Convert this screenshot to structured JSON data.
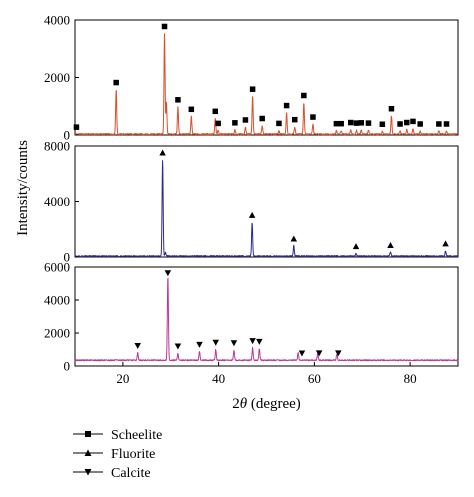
{
  "chart_data": {
    "type": "line",
    "xlabel": "2θ (degree)",
    "ylabel": "Intensity/counts",
    "xlim": [
      10,
      90
    ],
    "x_ticks": [
      20,
      40,
      60,
      80
    ],
    "grid": false,
    "legend_position": "bottom-left",
    "panels": [
      {
        "name": "Scheelite",
        "color": "#d9502b",
        "marker": "square",
        "ylim": [
          0,
          4000
        ],
        "y_ticks": [
          0,
          2000,
          4000
        ],
        "baseline": 30,
        "peaks": [
          {
            "x": 18.6,
            "y": 1550
          },
          {
            "x": 28.7,
            "y": 3500
          },
          {
            "x": 29.1,
            "y": 1100
          },
          {
            "x": 31.5,
            "y": 950
          },
          {
            "x": 34.3,
            "y": 620
          },
          {
            "x": 39.3,
            "y": 550
          },
          {
            "x": 39.9,
            "y": 130
          },
          {
            "x": 43.4,
            "y": 150
          },
          {
            "x": 45.6,
            "y": 250
          },
          {
            "x": 47.1,
            "y": 1320
          },
          {
            "x": 49.1,
            "y": 300
          },
          {
            "x": 52.6,
            "y": 130
          },
          {
            "x": 54.2,
            "y": 750
          },
          {
            "x": 55.9,
            "y": 260
          },
          {
            "x": 57.8,
            "y": 1100
          },
          {
            "x": 59.7,
            "y": 350
          },
          {
            "x": 64.6,
            "y": 120
          },
          {
            "x": 65.6,
            "y": 120
          },
          {
            "x": 67.6,
            "y": 160
          },
          {
            "x": 68.8,
            "y": 140
          },
          {
            "x": 69.8,
            "y": 150
          },
          {
            "x": 71.3,
            "y": 140
          },
          {
            "x": 74.2,
            "y": 100
          },
          {
            "x": 76.1,
            "y": 640
          },
          {
            "x": 77.9,
            "y": 110
          },
          {
            "x": 79.3,
            "y": 160
          },
          {
            "x": 80.6,
            "y": 200
          },
          {
            "x": 82.1,
            "y": 110
          },
          {
            "x": 86.0,
            "y": 110
          },
          {
            "x": 87.6,
            "y": 110
          }
        ],
        "markers_x": [
          10.3,
          18.6,
          28.7,
          31.5,
          34.3,
          39.3,
          39.9,
          43.4,
          45.6,
          47.1,
          49.1,
          52.6,
          54.2,
          55.9,
          57.8,
          59.7,
          64.6,
          65.6,
          67.6,
          68.8,
          69.8,
          71.3,
          74.2,
          76.1,
          77.9,
          79.3,
          80.6,
          82.1,
          86.0,
          87.6
        ]
      },
      {
        "name": "Fluorite",
        "color": "#2e2a8f",
        "marker": "triangle-up",
        "ylim": [
          0,
          8000
        ],
        "y_ticks": [
          0,
          4000,
          8000
        ],
        "baseline": 60,
        "peaks": [
          {
            "x": 28.3,
            "y": 6950
          },
          {
            "x": 28.9,
            "y": 250
          },
          {
            "x": 47.0,
            "y": 2450
          },
          {
            "x": 55.7,
            "y": 750
          },
          {
            "x": 68.7,
            "y": 200
          },
          {
            "x": 75.9,
            "y": 280
          },
          {
            "x": 87.4,
            "y": 400
          }
        ],
        "markers_x": [
          28.3,
          47.0,
          55.7,
          68.7,
          75.9,
          87.4
        ]
      },
      {
        "name": "Calcite",
        "color": "#b8399a",
        "marker": "triangle-down",
        "ylim": [
          0,
          6000
        ],
        "y_ticks": [
          0,
          2000,
          4000,
          6000
        ],
        "baseline": 350,
        "peaks": [
          {
            "x": 23.1,
            "y": 450
          },
          {
            "x": 29.4,
            "y": 5100
          },
          {
            "x": 31.5,
            "y": 420
          },
          {
            "x": 36.0,
            "y": 520
          },
          {
            "x": 39.4,
            "y": 650
          },
          {
            "x": 43.2,
            "y": 620
          },
          {
            "x": 47.1,
            "y": 750
          },
          {
            "x": 48.5,
            "y": 700
          },
          {
            "x": 56.6,
            "y": 450
          },
          {
            "x": 60.7,
            "y": 400
          },
          {
            "x": 64.7,
            "y": 380
          }
        ],
        "markers_x": [
          23.1,
          29.4,
          31.5,
          36.0,
          39.4,
          43.2,
          47.1,
          48.5,
          57.4,
          61.0,
          65.0
        ]
      }
    ],
    "legend": [
      {
        "label": "Scheelite",
        "marker": "square"
      },
      {
        "label": "Fluorite",
        "marker": "triangle-up"
      },
      {
        "label": "Calcite",
        "marker": "triangle-down"
      }
    ]
  }
}
